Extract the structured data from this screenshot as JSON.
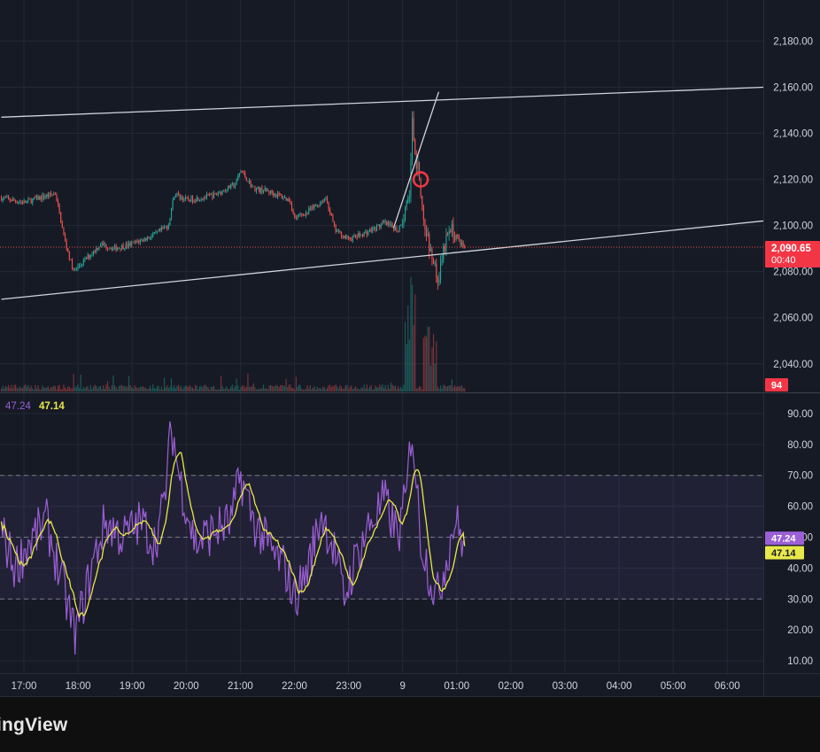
{
  "chart_data": [
    {
      "type": "candlestick",
      "title": "",
      "y_ticks": [
        "2,180.00",
        "2,160.00",
        "2,140.00",
        "2,120.00",
        "2,100.00",
        "2,080.00",
        "2,060.00",
        "2,040.00"
      ],
      "ylim": [
        2028,
        2194
      ],
      "x_ticks": [
        "17:00",
        "18:00",
        "19:00",
        "20:00",
        "21:00",
        "22:00",
        "23:00",
        "9",
        "01:00",
        "02:00",
        "03:00",
        "04:00",
        "05:00",
        "06:00"
      ],
      "last_price": "2,090.65",
      "countdown": "00:40",
      "volume_label": "94",
      "grid": true,
      "colors": {
        "up": "#26a69a",
        "down": "#ef5350",
        "trendline": "#d1d4dc",
        "price_line": "#ef5350"
      },
      "trendlines": [
        {
          "from": [
            "16:35",
            2147
          ],
          "to": [
            "06:40",
            2160
          ]
        },
        {
          "from": [
            "16:35",
            2068
          ],
          "to": [
            "06:40",
            2102
          ]
        },
        {
          "from": [
            "23:50",
            2099
          ],
          "to": [
            "00:40",
            2158
          ]
        }
      ],
      "marker": {
        "type": "circle",
        "color": "#f23645",
        "at": [
          "00:20",
          2120
        ]
      }
    },
    {
      "type": "line",
      "indicator": "RSI",
      "values_label": [
        "47.24",
        "47.14"
      ],
      "y_ticks": [
        "90.00",
        "80.00",
        "70.00",
        "60.00",
        "50.00",
        "40.00",
        "30.00",
        "20.00",
        "10.00"
      ],
      "ylim": [
        6,
        96
      ],
      "band": [
        30,
        70
      ],
      "series": [
        {
          "color": "#9c5fd6",
          "last": "47.24"
        },
        {
          "color": "#e8e84a",
          "last": "47.14"
        }
      ]
    }
  ],
  "branding": {
    "text": "ingView"
  }
}
